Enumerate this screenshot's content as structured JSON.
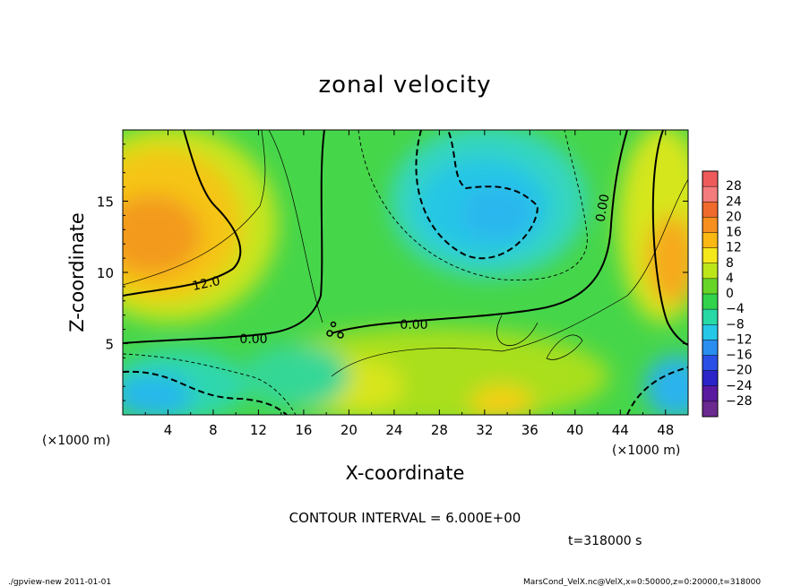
{
  "chart_data": {
    "type": "heatmap",
    "title": "zonal velocity",
    "xlabel": "X-coordinate",
    "ylabel": "Z-coordinate",
    "x_unit": "(×1000 m)",
    "z_unit": "(×1000 m)",
    "xlim": [
      0,
      50
    ],
    "ylim": [
      0,
      20
    ],
    "x_ticks": [
      "4",
      "8",
      "12",
      "16",
      "20",
      "24",
      "28",
      "32",
      "36",
      "40",
      "44",
      "48"
    ],
    "y_ticks": [
      "5",
      "10",
      "15"
    ],
    "colorbar": {
      "labels": [
        "28",
        "24",
        "20",
        "16",
        "12",
        "8",
        "4",
        "0",
        "−4",
        "−8",
        "−12",
        "−16",
        "−20",
        "−24",
        "−28"
      ],
      "colors": [
        "#ef5b5b",
        "#f47c7c",
        "#f06a2d",
        "#f78f1e",
        "#fbb813",
        "#f4e81a",
        "#bde61a",
        "#67d428",
        "#31d24c",
        "#27d9a4",
        "#25c8e6",
        "#2a8ef0",
        "#2a4fe6",
        "#2a24c9",
        "#5a1aa0",
        "#6b2a8f"
      ]
    },
    "contour_labels": [
      "12.0",
      "0.00",
      "0.00",
      "0.00"
    ],
    "field_samples": [
      {
        "x": 3,
        "z": 13,
        "value": 18
      },
      {
        "x": 8,
        "z": 15,
        "value": 14
      },
      {
        "x": 2,
        "z": 4,
        "value": 0
      },
      {
        "x": 3,
        "z": 1.5,
        "value": -12
      },
      {
        "x": 30,
        "z": 14,
        "value": -12
      },
      {
        "x": 33,
        "z": 16,
        "value": -10
      },
      {
        "x": 22,
        "z": 12,
        "value": 0
      },
      {
        "x": 49,
        "z": 10,
        "value": 16
      },
      {
        "x": 48,
        "z": 2,
        "value": -12
      },
      {
        "x": 33,
        "z": 1,
        "value": 14
      }
    ],
    "contour_interval": "CONTOUR INTERVAL = 6.000E+00",
    "time": "t=318000 s"
  },
  "footer": {
    "left": "./gpview-new  2011-01-01",
    "right": "MarsCond_VelX.nc@VelX,x=0:50000,z=0:20000,t=318000"
  }
}
